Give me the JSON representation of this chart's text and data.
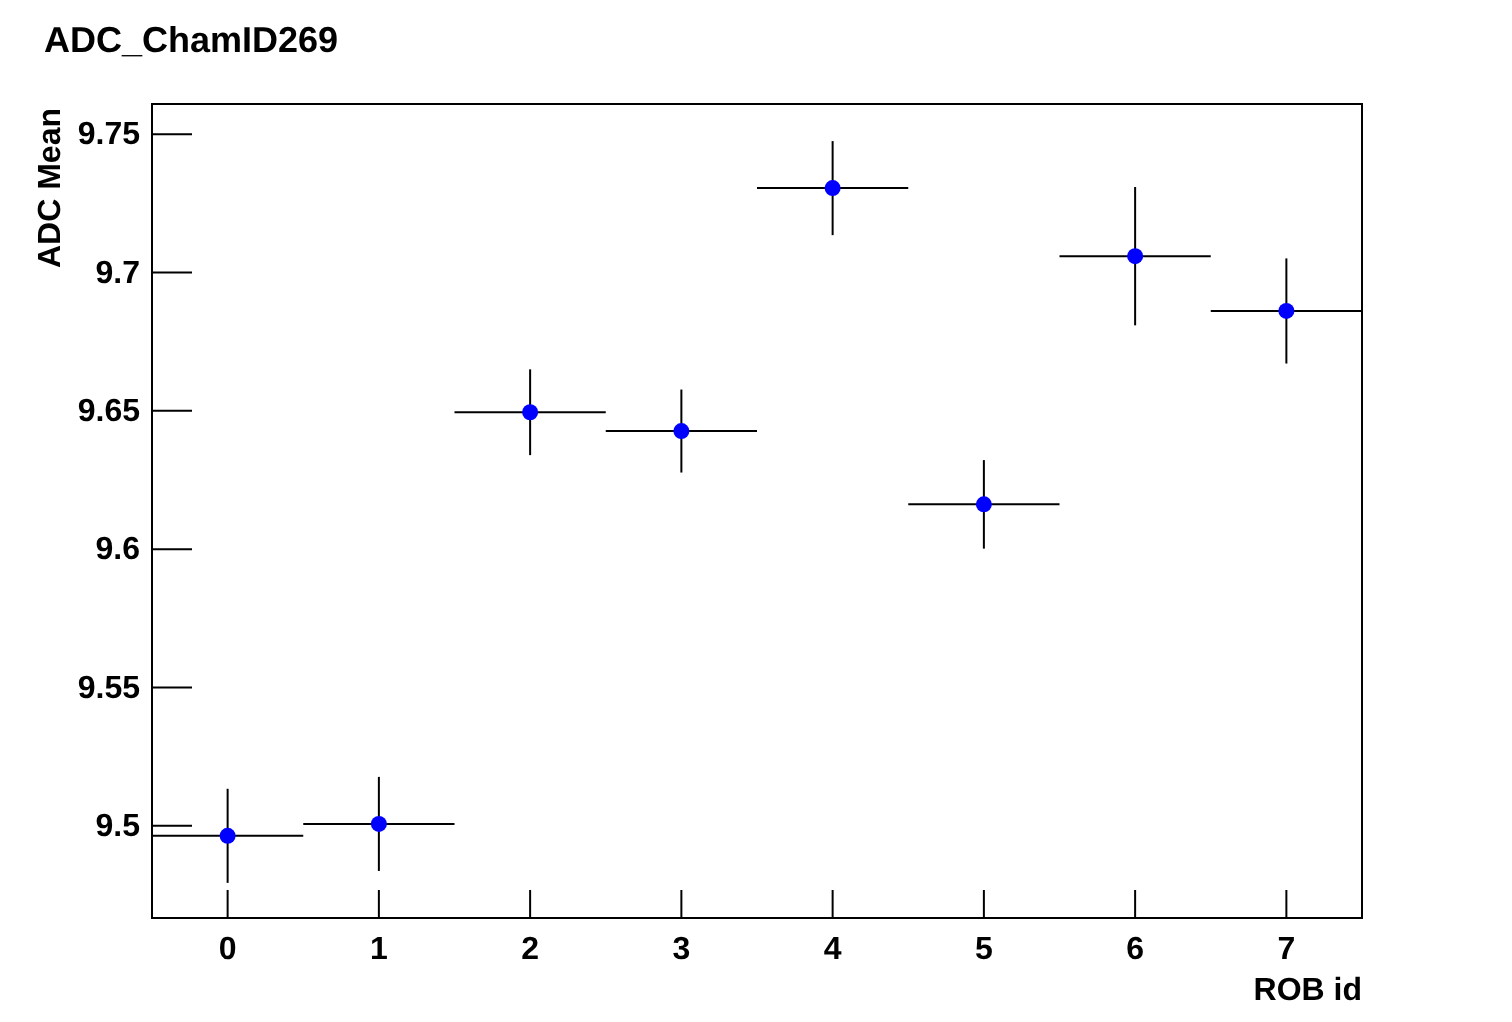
{
  "chart_data": {
    "type": "scatter",
    "title": "ADC_ChamID269",
    "xlabel": "ROB id",
    "ylabel": "ADC Mean",
    "x": [
      0,
      1,
      2,
      3,
      4,
      5,
      6,
      7
    ],
    "series": [
      {
        "color": "#0000ff",
        "values": [
          9.4964,
          9.5007,
          9.6495,
          9.6427,
          9.7305,
          9.6162,
          9.7059,
          9.6861
        ],
        "errors": [
          0.017,
          0.017,
          0.0155,
          0.015,
          0.017,
          0.016,
          0.025,
          0.019
        ],
        "xerrors": [
          0.5,
          0.5,
          0.5,
          0.5,
          0.5,
          0.5,
          0.5,
          0.5
        ]
      }
    ],
    "xlim": [
      -0.5,
      7.5
    ],
    "xticks": [
      0,
      1,
      2,
      3,
      4,
      5,
      6,
      7
    ],
    "ylim": [
      9.4667,
      9.7609
    ],
    "yticks": [
      {
        "value": 9.5,
        "label": "9.5"
      },
      9.55,
      {
        "value": 9.6,
        "label": "9.6"
      },
      9.65,
      {
        "value": 9.7,
        "label": "9.7"
      },
      9.75
    ],
    "marker": "circle",
    "grid": false
  }
}
